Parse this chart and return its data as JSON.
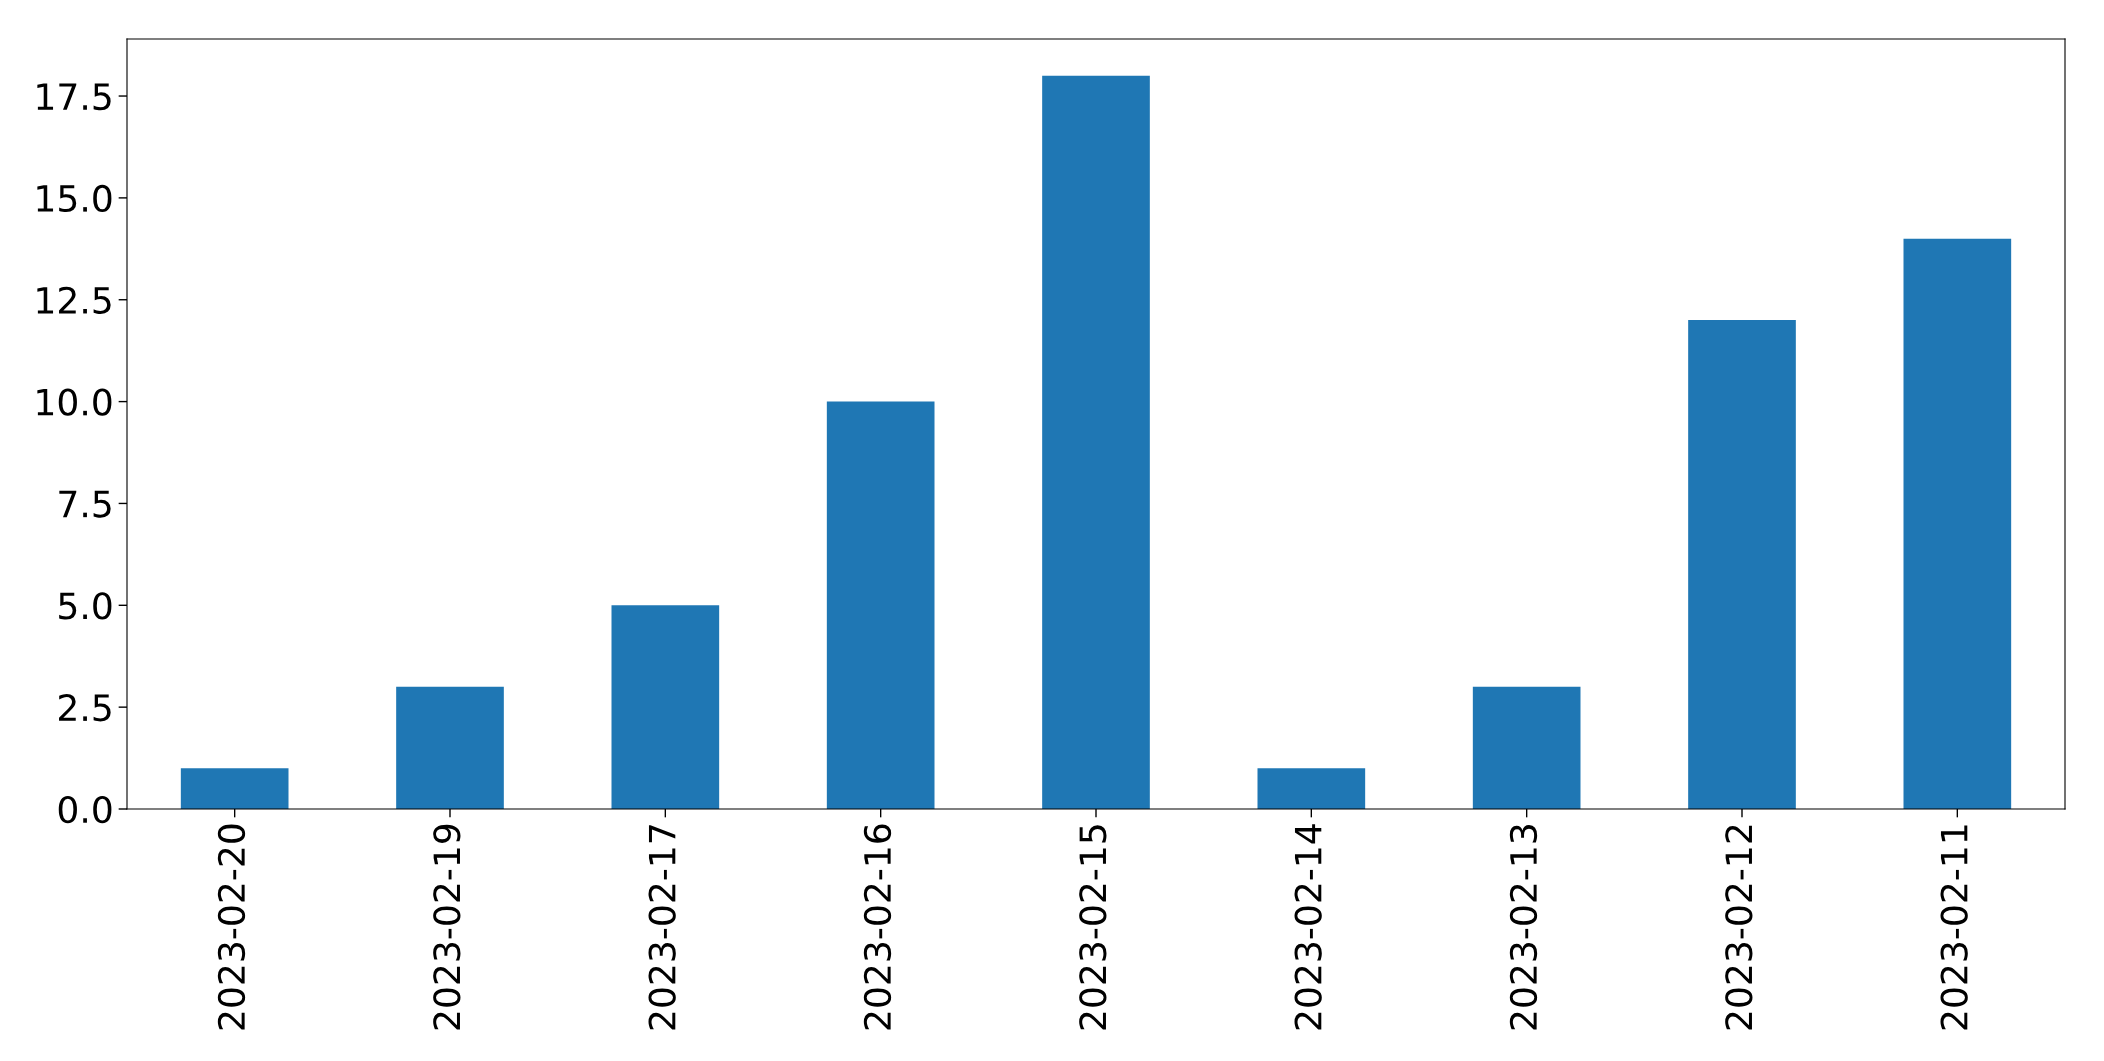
{
  "chart_data": {
    "type": "bar",
    "categories": [
      "2023-02-20",
      "2023-02-19",
      "2023-02-17",
      "2023-02-16",
      "2023-02-15",
      "2023-02-14",
      "2023-02-13",
      "2023-02-12",
      "2023-02-11"
    ],
    "values": [
      1,
      3,
      5,
      10,
      18,
      1,
      3,
      12,
      14
    ],
    "color": "#1f77b4",
    "ylim": [
      0,
      18.9
    ],
    "yticks": [
      {
        "value": 0,
        "label": "0.0"
      },
      {
        "value": 2.5,
        "label": "2.5"
      },
      {
        "value": 5,
        "label": "5.0"
      },
      {
        "value": 7.5,
        "label": "7.5"
      },
      {
        "value": 10,
        "label": "10.0"
      },
      {
        "value": 12.5,
        "label": "12.5"
      },
      {
        "value": 15,
        "label": "15.0"
      },
      {
        "value": 17.5,
        "label": "17.5"
      }
    ]
  }
}
